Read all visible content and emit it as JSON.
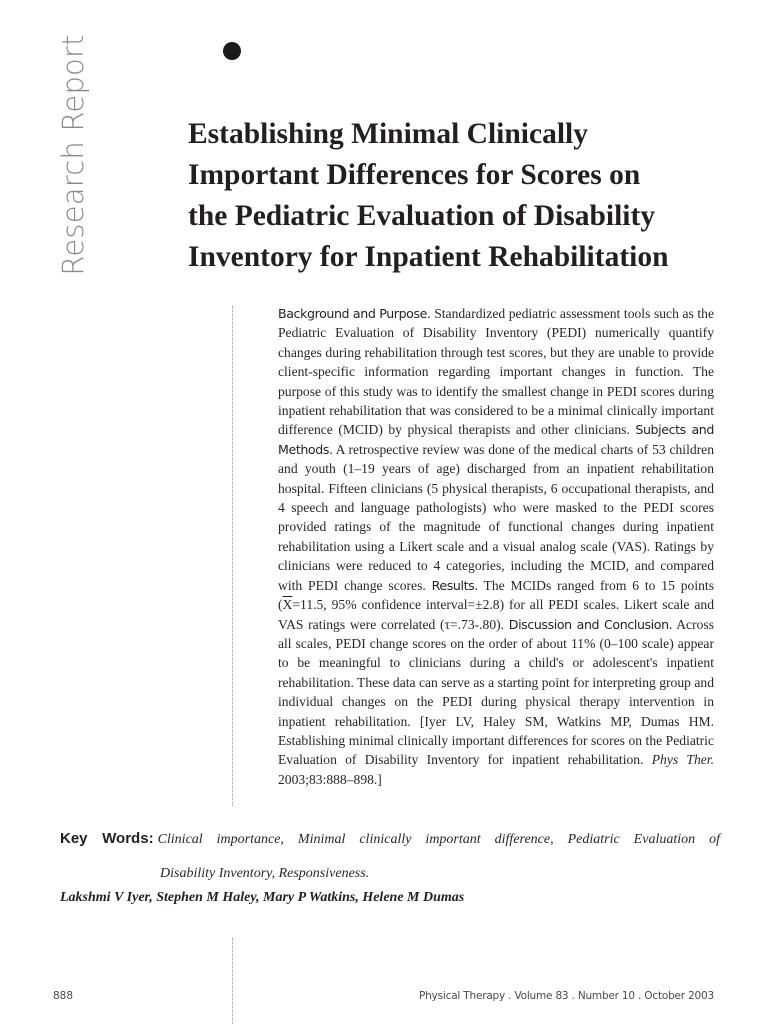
{
  "section_label": "Research Report",
  "title_lines": [
    "Establishing Minimal Clinically",
    "Important Differences for Scores on",
    "the Pediatric Evaluation of Disability",
    "Inventory for Inpatient Rehabilitation"
  ],
  "abstract": {
    "background_head": "Background and Purpose.",
    "background_text": " Standardized pediatric assessment tools such as the Pediatric Evaluation of Disability Inventory (PEDI) numerically quantify changes during rehabilitation through test scores, but they are unable to provide client-specific information regarding important changes in function. The purpose of this study was to identify the smallest change in PEDI scores during inpatient rehabilitation that was considered to be a minimal clinically important difference (MCID) by physical therapists and other clinicians. ",
    "methods_head": "Subjects and Methods.",
    "methods_text": " A retrospective review was done of the medical charts of 53 children and youth (1–19 years of age) discharged from an inpatient rehabilitation hospital. Fifteen clinicians (5 physical therapists, 6 occupational therapists, and 4 speech and language pathologists) who were masked to the PEDI scores provided ratings of the magnitude of functional changes during inpatient rehabilitation using a Likert scale and a visual analog scale (VAS). Ratings by clinicians were reduced to 4 categories, including the MCID, and compared with PEDI change scores. ",
    "results_head": "Results.",
    "results_text_a": " The MCIDs ranged from 6 to 15 points (",
    "results_xbar": "X",
    "results_text_b": "=11.5, 95% confidence interval=±2.8) for all PEDI scales. Likert scale and VAS ratings were correlated (τ=.73-.80). ",
    "discussion_head": "Discussion and Conclusion.",
    "discussion_text": " Across all scales, PEDI change scores on the order of about 11% (0–100 scale) appear to be meaningful to clinicians during a child's or adolescent's inpatient rehabilitation. These data can serve as a starting point for interpreting group and individual changes on the PEDI during physical therapy intervention in inpatient rehabilitation. [Iyer LV, Haley SM, Watkins MP, Dumas HM. Establishing minimal clinically important differences for scores on the Pediatric Evaluation of Disability Inventory for inpatient rehabilitation. ",
    "citation_journal": "Phys Ther.",
    "citation_rest": " 2003;83:888–898.]"
  },
  "keywords": {
    "label": "Key Words:",
    "line1": "Clinical importance, Minimal clinically important difference, Pediatric Evaluation of",
    "line2": "Disability Inventory, Responsiveness."
  },
  "authors": "Lakshmi V Iyer, Stephen M Haley, Mary P Watkins, Helene M Dumas",
  "footer": {
    "page_number": "888",
    "journal_info": "Physical Therapy . Volume 83 . Number 10 . October 2003"
  }
}
